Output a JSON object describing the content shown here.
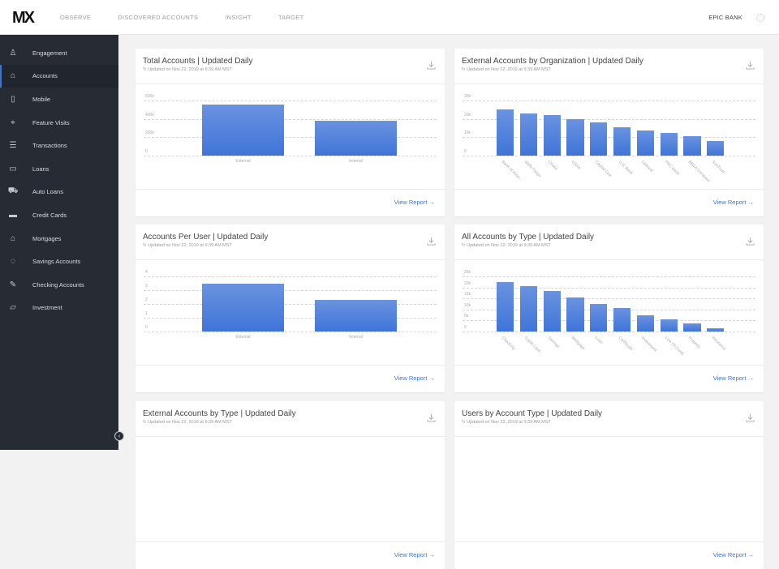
{
  "header": {
    "logo": "MX",
    "nav": [
      "OBSERVE",
      "DISCOVERED ACCOUNTS",
      "INSIGHT",
      "TARGET"
    ],
    "org": "EPIC BANK"
  },
  "sidebar": {
    "items": [
      {
        "label": "Engagement",
        "icon": "user-icon"
      },
      {
        "label": "Accounts",
        "icon": "bank-icon",
        "active": true
      },
      {
        "label": "Mobile",
        "icon": "mobile-icon"
      },
      {
        "label": "Feature Visits",
        "icon": "cursor-click-icon"
      },
      {
        "label": "Transactions",
        "icon": "list-icon"
      },
      {
        "label": "Loans",
        "icon": "document-icon"
      },
      {
        "label": "Auto Loans",
        "icon": "car-icon"
      },
      {
        "label": "Credit Cards",
        "icon": "credit-card-icon"
      },
      {
        "label": "Mortgages",
        "icon": "home-icon"
      },
      {
        "label": "Savings Accounts",
        "icon": "piggy-bank-icon"
      },
      {
        "label": "Checking Accounts",
        "icon": "checkbook-icon"
      },
      {
        "label": "Investment",
        "icon": "folder-icon"
      }
    ]
  },
  "common": {
    "updated": "Updated on Nov 22, 2019 at 9:39 AM MST",
    "view_report": "View Report",
    "arrow": "→"
  },
  "cards": [
    {
      "title": "Total Accounts | Updated Daily"
    },
    {
      "title": "External Accounts by Organization | Updated Daily"
    },
    {
      "title": "Accounts Per User | Updated Daily"
    },
    {
      "title": "All Accounts by Type | Updated Daily"
    },
    {
      "title": "External Accounts by Type | Updated Daily"
    },
    {
      "title": "Users by Account Type | Updated Daily"
    }
  ],
  "chart_data": [
    {
      "type": "bar",
      "title": "Total Accounts",
      "categories": [
        "External",
        "Internal"
      ],
      "values": [
        560000,
        380000
      ],
      "yticks": [
        "600k",
        "400k",
        "200k",
        "0"
      ],
      "ylim": [
        0,
        600000
      ]
    },
    {
      "type": "bar",
      "title": "External Accounts by Organization",
      "categories": [
        "Bank of Amer...",
        "Wells Fargo",
        "Chase",
        "USAA",
        "Capital One",
        "U.S. Bank",
        "Citibank",
        "PNC Bank",
        "BB&A Compass",
        "SunTrust"
      ],
      "values": [
        25000,
        23000,
        22000,
        20000,
        18000,
        15500,
        13500,
        12500,
        10500,
        8000
      ],
      "yticks": [
        "30k",
        "20k",
        "10k",
        "0"
      ],
      "ylim": [
        0,
        30000
      ]
    },
    {
      "type": "bar",
      "title": "Accounts Per User",
      "categories": [
        "External",
        "Internal"
      ],
      "values": [
        3.5,
        2.3
      ],
      "yticks": [
        "4",
        "3",
        "2",
        "1",
        "0"
      ],
      "ylim": [
        0,
        4
      ]
    },
    {
      "type": "bar",
      "title": "All Accounts by Type",
      "categories": [
        "Checking",
        "Credit Card",
        "Savings",
        "Mortgage",
        "Loan",
        "Certificate ...",
        "Investment",
        "Line Of Credit",
        "Property",
        "Insurance"
      ],
      "values": [
        22500,
        20500,
        18500,
        15500,
        12500,
        10500,
        7500,
        5500,
        3500,
        1500
      ],
      "yticks": [
        "25k",
        "20k",
        "15k",
        "10k",
        "5k",
        "0"
      ],
      "ylim": [
        0,
        25000
      ]
    }
  ]
}
